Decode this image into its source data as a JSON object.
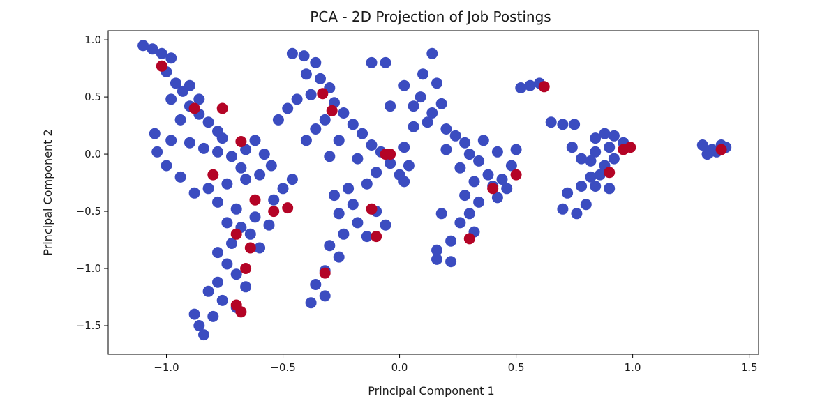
{
  "chart_data": {
    "type": "scatter",
    "title": "PCA - 2D Projection of Job Postings",
    "xlabel": "Principal Component 1",
    "ylabel": "Principal Component 2",
    "xlim": [
      -1.25,
      1.54
    ],
    "ylim": [
      -1.75,
      1.08
    ],
    "xticks": [
      -1.0,
      -0.5,
      0.0,
      0.5,
      1.0,
      1.5
    ],
    "xtick_labels": [
      "−1.0",
      "−0.5",
      "0.0",
      "0.5",
      "1.0",
      "1.5"
    ],
    "yticks": [
      1.0,
      0.5,
      0.0,
      -0.5,
      -1.0,
      -1.5
    ],
    "ytick_labels": [
      "1.0",
      "0.5",
      "0.0",
      "−0.5",
      "−1.0",
      "−1.5"
    ],
    "grid": false,
    "legend": "none",
    "colors": {
      "class_0": "#3b4cc0",
      "class_1": "#b40426"
    },
    "series": [
      {
        "color": "#3b4cc0",
        "points": [
          [
            -1.1,
            0.95
          ],
          [
            -1.06,
            0.92
          ],
          [
            -1.02,
            0.88
          ],
          [
            -0.98,
            0.84
          ],
          [
            -1.0,
            0.72
          ],
          [
            -0.96,
            0.62
          ],
          [
            -0.93,
            0.55
          ],
          [
            -0.98,
            0.48
          ],
          [
            -0.9,
            0.42
          ],
          [
            -0.86,
            0.35
          ],
          [
            -0.94,
            0.3
          ],
          [
            -0.82,
            0.28
          ],
          [
            -0.78,
            0.2
          ],
          [
            -1.05,
            0.18
          ],
          [
            -0.98,
            0.12
          ],
          [
            -0.9,
            0.1
          ],
          [
            -0.84,
            0.05
          ],
          [
            -0.78,
            0.02
          ],
          [
            -0.72,
            -0.02
          ],
          [
            -0.66,
            0.04
          ],
          [
            -0.62,
            0.12
          ],
          [
            -0.58,
            0.0
          ],
          [
            -0.55,
            -0.1
          ],
          [
            -0.6,
            -0.18
          ],
          [
            -0.66,
            -0.22
          ],
          [
            -0.74,
            -0.26
          ],
          [
            -0.82,
            -0.3
          ],
          [
            -0.88,
            -0.34
          ],
          [
            -0.78,
            -0.42
          ],
          [
            -0.7,
            -0.48
          ],
          [
            -0.62,
            -0.55
          ],
          [
            -0.56,
            -0.62
          ],
          [
            -0.64,
            -0.7
          ],
          [
            -0.72,
            -0.78
          ],
          [
            -0.78,
            -0.86
          ],
          [
            -0.74,
            -0.96
          ],
          [
            -0.7,
            -1.05
          ],
          [
            -0.78,
            -1.12
          ],
          [
            -0.82,
            -1.2
          ],
          [
            -0.76,
            -1.28
          ],
          [
            -0.7,
            -1.34
          ],
          [
            -0.8,
            -1.42
          ],
          [
            -0.86,
            -1.5
          ],
          [
            -0.84,
            -1.58
          ],
          [
            -0.88,
            -1.4
          ],
          [
            -0.66,
            -1.16
          ],
          [
            -0.6,
            -0.82
          ],
          [
            -0.54,
            -0.4
          ],
          [
            -0.5,
            -0.3
          ],
          [
            -0.46,
            -0.22
          ],
          [
            -0.94,
            -0.2
          ],
          [
            -1.0,
            -0.1
          ],
          [
            -1.04,
            0.02
          ],
          [
            -0.9,
            0.6
          ],
          [
            -0.86,
            0.48
          ],
          [
            -0.76,
            0.14
          ],
          [
            -0.68,
            -0.12
          ],
          [
            -0.74,
            -0.6
          ],
          [
            -0.68,
            -0.64
          ],
          [
            -0.46,
            0.88
          ],
          [
            -0.41,
            0.86
          ],
          [
            -0.36,
            0.8
          ],
          [
            -0.4,
            0.7
          ],
          [
            -0.34,
            0.66
          ],
          [
            -0.3,
            0.58
          ],
          [
            -0.38,
            0.52
          ],
          [
            -0.44,
            0.48
          ],
          [
            -0.28,
            0.45
          ],
          [
            -0.24,
            0.36
          ],
          [
            -0.32,
            0.3
          ],
          [
            -0.2,
            0.26
          ],
          [
            -0.16,
            0.18
          ],
          [
            -0.26,
            0.12
          ],
          [
            -0.12,
            0.08
          ],
          [
            -0.08,
            0.02
          ],
          [
            -0.18,
            -0.04
          ],
          [
            -0.04,
            -0.08
          ],
          [
            -0.1,
            -0.16
          ],
          [
            0.0,
            -0.18
          ],
          [
            0.02,
            -0.24
          ],
          [
            -0.14,
            -0.26
          ],
          [
            -0.22,
            -0.3
          ],
          [
            -0.28,
            -0.36
          ],
          [
            -0.2,
            -0.44
          ],
          [
            -0.26,
            -0.52
          ],
          [
            -0.18,
            -0.6
          ],
          [
            -0.24,
            -0.7
          ],
          [
            -0.3,
            -0.8
          ],
          [
            -0.26,
            -0.9
          ],
          [
            -0.32,
            -1.02
          ],
          [
            -0.36,
            -1.14
          ],
          [
            -0.32,
            -1.24
          ],
          [
            -0.38,
            -1.3
          ],
          [
            -0.1,
            -0.5
          ],
          [
            -0.06,
            -0.62
          ],
          [
            -0.14,
            -0.72
          ],
          [
            -0.3,
            -0.02
          ],
          [
            -0.36,
            0.22
          ],
          [
            -0.48,
            0.4
          ],
          [
            -0.4,
            0.12
          ],
          [
            -0.52,
            0.3
          ],
          [
            -0.12,
            0.8
          ],
          [
            -0.06,
            0.8
          ],
          [
            -0.04,
            0.42
          ],
          [
            0.06,
            0.24
          ],
          [
            0.02,
            0.06
          ],
          [
            0.04,
            -0.1
          ],
          [
            0.14,
            0.88
          ],
          [
            0.1,
            0.7
          ],
          [
            0.16,
            0.62
          ],
          [
            0.02,
            0.6
          ],
          [
            0.09,
            0.5
          ],
          [
            0.18,
            0.44
          ],
          [
            0.14,
            0.36
          ],
          [
            0.06,
            0.42
          ],
          [
            0.12,
            0.28
          ],
          [
            0.2,
            0.22
          ],
          [
            0.24,
            0.16
          ],
          [
            0.28,
            0.1
          ],
          [
            0.2,
            0.04
          ],
          [
            0.3,
            0.0
          ],
          [
            0.34,
            -0.06
          ],
          [
            0.26,
            -0.12
          ],
          [
            0.38,
            -0.18
          ],
          [
            0.32,
            -0.24
          ],
          [
            0.4,
            -0.28
          ],
          [
            0.28,
            -0.36
          ],
          [
            0.34,
            -0.42
          ],
          [
            0.42,
            -0.38
          ],
          [
            0.3,
            -0.52
          ],
          [
            0.26,
            -0.6
          ],
          [
            0.32,
            -0.68
          ],
          [
            0.22,
            -0.76
          ],
          [
            0.16,
            -0.84
          ],
          [
            0.16,
            -0.92
          ],
          [
            0.22,
            -0.94
          ],
          [
            0.44,
            -0.22
          ],
          [
            0.48,
            -0.1
          ],
          [
            0.5,
            0.04
          ],
          [
            0.36,
            0.12
          ],
          [
            0.42,
            0.02
          ],
          [
            0.46,
            -0.3
          ],
          [
            0.18,
            -0.52
          ],
          [
            0.56,
            0.6
          ],
          [
            0.6,
            0.62
          ],
          [
            0.52,
            0.58
          ],
          [
            0.65,
            0.28
          ],
          [
            0.7,
            0.26
          ],
          [
            0.75,
            0.26
          ],
          [
            0.72,
            -0.34
          ],
          [
            0.78,
            -0.28
          ],
          [
            0.82,
            -0.2
          ],
          [
            0.7,
            -0.48
          ],
          [
            0.76,
            -0.52
          ],
          [
            0.8,
            -0.44
          ],
          [
            0.74,
            0.06
          ],
          [
            0.78,
            -0.04
          ],
          [
            0.84,
            0.14
          ],
          [
            0.88,
            0.18
          ],
          [
            0.92,
            0.16
          ],
          [
            0.96,
            0.1
          ],
          [
            0.9,
            0.06
          ],
          [
            0.84,
            0.02
          ],
          [
            0.82,
            -0.06
          ],
          [
            0.88,
            -0.1
          ],
          [
            0.92,
            -0.04
          ],
          [
            0.86,
            -0.18
          ],
          [
            0.84,
            -0.28
          ],
          [
            0.9,
            -0.3
          ],
          [
            1.3,
            0.08
          ],
          [
            1.34,
            0.04
          ],
          [
            1.38,
            0.08
          ],
          [
            1.32,
            0.0
          ],
          [
            1.36,
            0.02
          ],
          [
            1.4,
            0.06
          ]
        ]
      },
      {
        "color": "#b40426",
        "points": [
          [
            -1.02,
            0.77
          ],
          [
            -0.88,
            0.4
          ],
          [
            -0.76,
            0.4
          ],
          [
            -0.68,
            0.11
          ],
          [
            -0.8,
            -0.18
          ],
          [
            -0.62,
            -0.4
          ],
          [
            -0.54,
            -0.5
          ],
          [
            -0.48,
            -0.47
          ],
          [
            -0.7,
            -0.7
          ],
          [
            -0.64,
            -0.82
          ],
          [
            -0.66,
            -1.0
          ],
          [
            -0.7,
            -1.32
          ],
          [
            -0.68,
            -1.38
          ],
          [
            -0.33,
            0.53
          ],
          [
            -0.29,
            0.38
          ],
          [
            -0.06,
            0.0
          ],
          [
            -0.04,
            0.0
          ],
          [
            -0.12,
            -0.48
          ],
          [
            -0.1,
            -0.72
          ],
          [
            -0.32,
            -1.04
          ],
          [
            0.4,
            -0.3
          ],
          [
            0.5,
            -0.18
          ],
          [
            0.3,
            -0.74
          ],
          [
            0.62,
            0.59
          ],
          [
            0.9,
            -0.16
          ],
          [
            0.96,
            0.04
          ],
          [
            0.99,
            0.06
          ],
          [
            1.38,
            0.04
          ]
        ]
      }
    ]
  }
}
